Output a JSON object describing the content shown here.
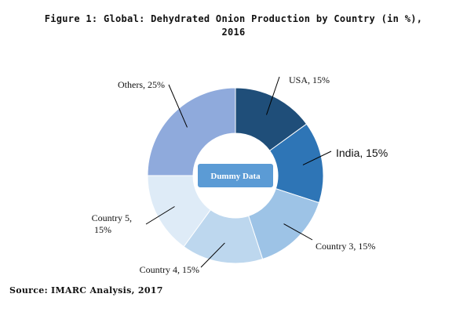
{
  "chart_data": {
    "type": "pie",
    "title_line1": "Figure 1: Global: Dehydrated Onion Production by Country (in %),",
    "title_line2": "2016",
    "slices": [
      {
        "label": "USA, 15%",
        "value": 15,
        "color": "#1f4e79"
      },
      {
        "label": "India, 15%",
        "value": 15,
        "color": "#2e75b6"
      },
      {
        "label": "Country 3, 15%",
        "value": 15,
        "color": "#9dc3e6"
      },
      {
        "label": "Country 4, 15%",
        "value": 15,
        "color": "#bdd7ee"
      },
      {
        "label": "Country 5,\n15%",
        "value": 15,
        "color": "#deebf7"
      },
      {
        "label": "Others, 25%",
        "value": 25,
        "color": "#8faadc"
      }
    ],
    "center_badge": "Dummy Data",
    "center_badge_color": "#5b9bd5"
  },
  "source": "Source: IMARC Analysis, 2017"
}
